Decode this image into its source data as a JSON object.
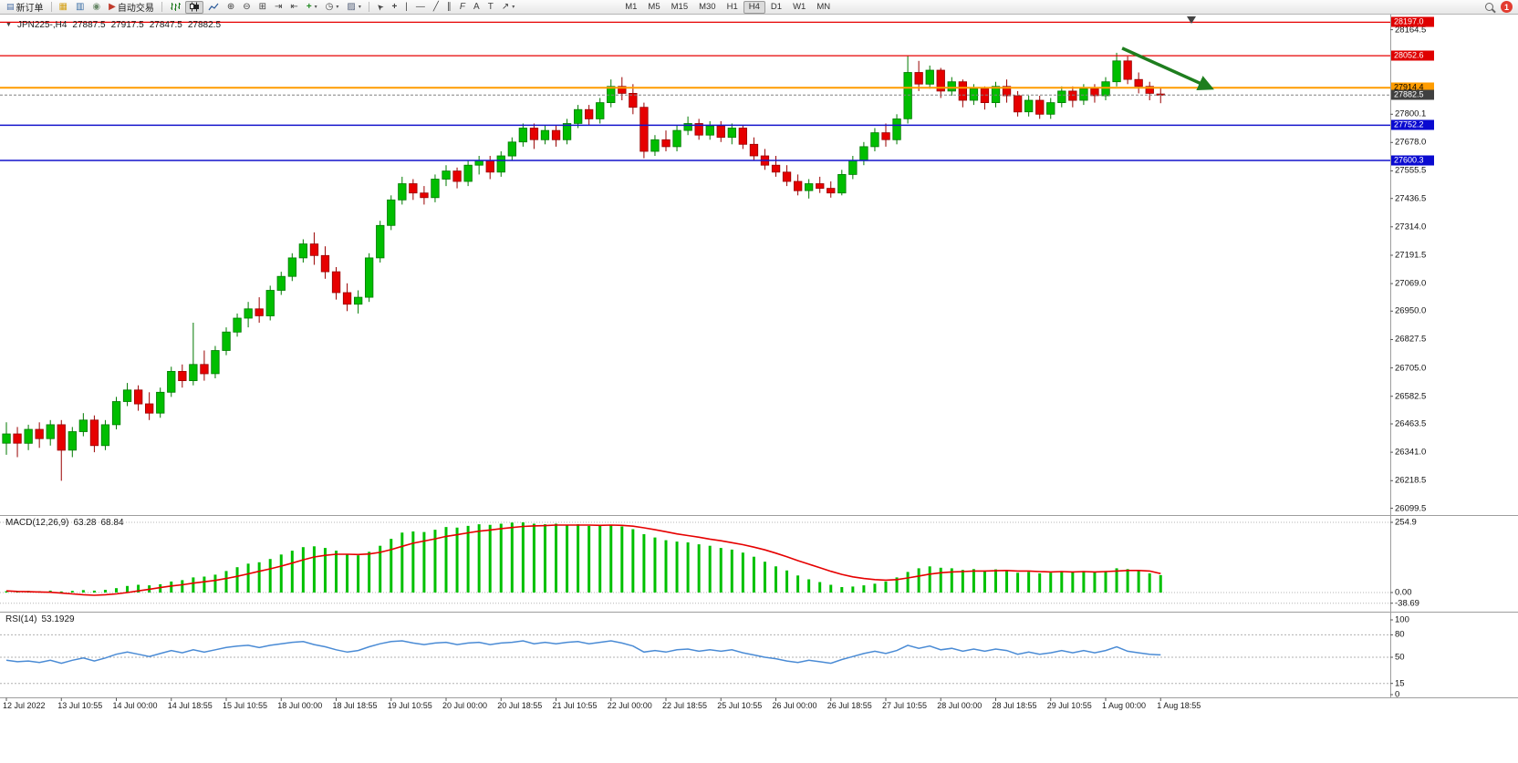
{
  "toolbar": {
    "new_order": "新订单",
    "auto_trading": "自动交易",
    "timeframes": [
      "M1",
      "M5",
      "M15",
      "M30",
      "H1",
      "H4",
      "D1",
      "W1",
      "MN"
    ],
    "active_timeframe": "H4",
    "notification_count": "1"
  },
  "chart_header": {
    "symbol": "JPN225-,H4",
    "open": "27887.5",
    "high": "27917.5",
    "low": "27847.5",
    "close": "27882.5"
  },
  "indicators": {
    "macd": {
      "label": "MACD(12,26,9)",
      "value_macd": "63.28",
      "value_signal": "68.84"
    },
    "rsi": {
      "label": "RSI(14)",
      "value": "53.1929"
    }
  },
  "price_axis": {
    "ticks": [
      "28164.5",
      "27800.1",
      "27678.0",
      "27555.5",
      "27436.5",
      "27314.0",
      "27191.5",
      "27069.0",
      "26950.0",
      "26827.5",
      "26705.0",
      "26582.5",
      "26463.5",
      "26341.0",
      "26218.5",
      "26099.5"
    ],
    "badges": [
      {
        "text": "28197.0",
        "price": 28197.0,
        "bg": "#DF0000",
        "fg": "#FFFFFF"
      },
      {
        "text": "28052.6",
        "price": 28052.6,
        "bg": "#DF0000",
        "fg": "#FFFFFF"
      },
      {
        "text": "27914.4",
        "price": 27914.4,
        "bg": "#FF9C00",
        "fg": "#000000"
      },
      {
        "text": "27882.5",
        "price": 27882.5,
        "bg": "#404040",
        "fg": "#FFFFFF"
      },
      {
        "text": "27752.2",
        "price": 27752.2,
        "bg": "#0A0AD0",
        "fg": "#FFFFFF"
      },
      {
        "text": "27600.3",
        "price": 27600.3,
        "bg": "#0A0AD0",
        "fg": "#FFFFFF"
      }
    ]
  },
  "macd_axis": [
    {
      "t": "254.9",
      "v": 254.9
    },
    {
      "t": "0.00",
      "v": 0
    },
    {
      "t": "-38.69",
      "v": -38.69
    }
  ],
  "rsi_axis": [
    {
      "t": "100",
      "v": 100
    },
    {
      "t": "80",
      "v": 80
    },
    {
      "t": "50",
      "v": 50
    },
    {
      "t": "15",
      "v": 15
    },
    {
      "t": "0",
      "v": 0
    }
  ],
  "colors": {
    "candle_up": "#00BE00",
    "candle_up_border": "#007A00",
    "candle_down": "#E60000",
    "candle_down_border": "#990000",
    "macd_histogram": "#00C000",
    "macd_signal": "#E60000",
    "rsi_line": "#4A8BD5",
    "hline_red": "#E60000",
    "hline_orange": "#FF9C00",
    "hline_blue": "#1414CC",
    "arrow_green": "#1E7E1E"
  },
  "chart_data": [
    {
      "type": "candlestick",
      "symbol": "JPN225-",
      "timeframe": "H4",
      "current_bar": {
        "open": 27887.5,
        "high": 27917.5,
        "low": 27847.5,
        "close": 27882.5
      },
      "ylim": [
        26070,
        28230
      ],
      "label_step": 5,
      "x_labels": [
        "12 Jul 2022",
        "13 Jul 10:55",
        "14 Jul 00:00",
        "14 Jul 18:55",
        "15 Jul 10:55",
        "18 Jul 00:00",
        "18 Jul 18:55",
        "19 Jul 10:55",
        "20 Jul 00:00",
        "20 Jul 18:55",
        "21 Jul 10:55",
        "22 Jul 00:00",
        "22 Jul 18:55",
        "25 Jul 10:55",
        "26 Jul 00:00",
        "26 Jul 18:55",
        "27 Jul 10:55",
        "28 Jul 00:00",
        "28 Jul 18:55",
        "29 Jul 10:55",
        "1 Aug 00:00",
        "1 Aug 18:55"
      ],
      "hlines": [
        {
          "price": 28197.0,
          "color": "#E60000",
          "width": 1.2
        },
        {
          "price": 28052.6,
          "color": "#E60000",
          "width": 1.2
        },
        {
          "price": 27914.4,
          "color": "#FF9C00",
          "width": 2
        },
        {
          "price": 27882.5,
          "color": "#808080",
          "width": 1,
          "dash": "3,2"
        },
        {
          "price": 27752.2,
          "color": "#1414CC",
          "width": 1.5
        },
        {
          "price": 27600.3,
          "color": "#1414CC",
          "width": 1.5
        }
      ],
      "arrow": {
        "from_index": 101.5,
        "from_price": 28085,
        "to_index": 109.6,
        "to_price": 27912,
        "color": "#1E7E1E"
      },
      "shift_marker_index": 107.8,
      "ohlc": [
        [
          26380,
          26470,
          26330,
          26420
        ],
        [
          26420,
          26450,
          26320,
          26380
        ],
        [
          26380,
          26460,
          26350,
          26440
        ],
        [
          26440,
          26470,
          26360,
          26400
        ],
        [
          26400,
          26480,
          26370,
          26460
        ],
        [
          26460,
          26480,
          26218,
          26350
        ],
        [
          26350,
          26450,
          26320,
          26430
        ],
        [
          26430,
          26510,
          26410,
          26480
        ],
        [
          26480,
          26500,
          26341,
          26370
        ],
        [
          26370,
          26480,
          26350,
          26460
        ],
        [
          26460,
          26580,
          26440,
          26560
        ],
        [
          26560,
          26640,
          26540,
          26610
        ],
        [
          26610,
          26630,
          26520,
          26550
        ],
        [
          26550,
          26600,
          26480,
          26510
        ],
        [
          26510,
          26620,
          26490,
          26600
        ],
        [
          26600,
          26710,
          26580,
          26690
        ],
        [
          26690,
          26720,
          26620,
          26650
        ],
        [
          26650,
          26900,
          26630,
          26720
        ],
        [
          26720,
          26780,
          26650,
          26680
        ],
        [
          26680,
          26800,
          26660,
          26780
        ],
        [
          26780,
          26880,
          26760,
          26860
        ],
        [
          26860,
          26940,
          26840,
          26920
        ],
        [
          26920,
          26990,
          26880,
          26960
        ],
        [
          26960,
          27010,
          26900,
          26930
        ],
        [
          26930,
          27060,
          26910,
          27040
        ],
        [
          27040,
          27120,
          27020,
          27100
        ],
        [
          27100,
          27200,
          27080,
          27180
        ],
        [
          27180,
          27260,
          27160,
          27240
        ],
        [
          27240,
          27290,
          27150,
          27190
        ],
        [
          27190,
          27230,
          27090,
          27120
        ],
        [
          27120,
          27140,
          27000,
          27030
        ],
        [
          27030,
          27070,
          26950,
          26980
        ],
        [
          26980,
          27040,
          26940,
          27010
        ],
        [
          27010,
          27200,
          26990,
          27180
        ],
        [
          27180,
          27340,
          27160,
          27320
        ],
        [
          27320,
          27450,
          27300,
          27430
        ],
        [
          27430,
          27530,
          27410,
          27500
        ],
        [
          27500,
          27520,
          27430,
          27460
        ],
        [
          27460,
          27490,
          27410,
          27440
        ],
        [
          27440,
          27540,
          27420,
          27520
        ],
        [
          27520,
          27580,
          27490,
          27555
        ],
        [
          27555,
          27570,
          27480,
          27510
        ],
        [
          27510,
          27600,
          27490,
          27580
        ],
        [
          27580,
          27620,
          27540,
          27600
        ],
        [
          27600,
          27620,
          27520,
          27550
        ],
        [
          27550,
          27640,
          27530,
          27620
        ],
        [
          27620,
          27700,
          27600,
          27680
        ],
        [
          27680,
          27760,
          27660,
          27740
        ],
        [
          27740,
          27760,
          27650,
          27690
        ],
        [
          27690,
          27750,
          27670,
          27730
        ],
        [
          27730,
          27750,
          27660,
          27690
        ],
        [
          27690,
          27780,
          27670,
          27760
        ],
        [
          27760,
          27840,
          27740,
          27820
        ],
        [
          27820,
          27840,
          27750,
          27780
        ],
        [
          27780,
          27870,
          27760,
          27850
        ],
        [
          27850,
          27950,
          27830,
          27920
        ],
        [
          27920,
          27960,
          27860,
          27890
        ],
        [
          27890,
          27930,
          27800,
          27830
        ],
        [
          27830,
          27850,
          27610,
          27640
        ],
        [
          27640,
          27710,
          27620,
          27690
        ],
        [
          27690,
          27730,
          27640,
          27660
        ],
        [
          27660,
          27750,
          27640,
          27730
        ],
        [
          27730,
          27790,
          27710,
          27760
        ],
        [
          27760,
          27780,
          27690,
          27710
        ],
        [
          27710,
          27770,
          27690,
          27750
        ],
        [
          27750,
          27770,
          27680,
          27700
        ],
        [
          27700,
          27760,
          27670,
          27740
        ],
        [
          27740,
          27750,
          27650,
          27670
        ],
        [
          27670,
          27700,
          27600,
          27620
        ],
        [
          27620,
          27650,
          27560,
          27580
        ],
        [
          27580,
          27620,
          27530,
          27550
        ],
        [
          27550,
          27580,
          27490,
          27510
        ],
        [
          27510,
          27540,
          27450,
          27470
        ],
        [
          27470,
          27520,
          27436,
          27500
        ],
        [
          27500,
          27530,
          27460,
          27480
        ],
        [
          27480,
          27510,
          27440,
          27460
        ],
        [
          27460,
          27560,
          27450,
          27540
        ],
        [
          27540,
          27620,
          27520,
          27600
        ],
        [
          27600,
          27680,
          27580,
          27660
        ],
        [
          27660,
          27740,
          27640,
          27720
        ],
        [
          27720,
          27760,
          27660,
          27690
        ],
        [
          27690,
          27800,
          27670,
          27780
        ],
        [
          27780,
          28052,
          27760,
          27980
        ],
        [
          27980,
          28030,
          27900,
          27930
        ],
        [
          27930,
          28010,
          27910,
          27990
        ],
        [
          27990,
          28000,
          27870,
          27900
        ],
        [
          27900,
          27960,
          27880,
          27940
        ],
        [
          27940,
          27950,
          27830,
          27860
        ],
        [
          27860,
          27930,
          27840,
          27910
        ],
        [
          27910,
          27920,
          27820,
          27850
        ],
        [
          27850,
          27940,
          27830,
          27920
        ],
        [
          27920,
          27950,
          27850,
          27880
        ],
        [
          27880,
          27900,
          27790,
          27810
        ],
        [
          27810,
          27880,
          27790,
          27860
        ],
        [
          27860,
          27880,
          27780,
          27800
        ],
        [
          27800,
          27870,
          27780,
          27850
        ],
        [
          27850,
          27920,
          27830,
          27900
        ],
        [
          27900,
          27920,
          27830,
          27860
        ],
        [
          27860,
          27930,
          27840,
          27910
        ],
        [
          27910,
          27930,
          27850,
          27880
        ],
        [
          27880,
          27960,
          27860,
          27940
        ],
        [
          27940,
          28065,
          27920,
          28030
        ],
        [
          28030,
          28050,
          27930,
          27950
        ],
        [
          27950,
          27980,
          27890,
          27920
        ],
        [
          27920,
          27940,
          27860,
          27890
        ],
        [
          27887.5,
          27917.5,
          27847.5,
          27882.5
        ]
      ]
    },
    {
      "type": "bar",
      "name": "MACD",
      "params": "12,26,9",
      "current_macd": 63.28,
      "current_signal": 68.84,
      "levels": [
        254.9,
        0,
        -38.69
      ],
      "histogram": [
        5,
        4,
        6,
        5,
        7,
        4,
        6,
        9,
        7,
        10,
        16,
        24,
        28,
        26,
        30,
        40,
        45,
        55,
        58,
        65,
        78,
        92,
        105,
        110,
        122,
        138,
        152,
        165,
        168,
        162,
        152,
        140,
        135,
        148,
        170,
        195,
        218,
        222,
        220,
        228,
        238,
        236,
        242,
        248,
        246,
        250,
        254,
        254.9,
        250,
        248,
        250,
        246,
        248,
        242,
        244,
        246,
        240,
        230,
        212,
        200,
        190,
        185,
        182,
        175,
        170,
        162,
        156,
        145,
        130,
        112,
        95,
        80,
        62,
        48,
        38,
        28,
        20,
        22,
        26,
        32,
        40,
        55,
        75,
        88,
        95,
        90,
        88,
        82,
        85,
        80,
        84,
        80,
        72,
        75,
        70,
        72,
        78,
        74,
        78,
        74,
        78,
        88,
        85,
        78,
        70,
        63.28
      ],
      "signal": [
        6,
        4,
        3,
        2,
        1,
        -2,
        -5,
        -8,
        -10,
        -8,
        -5,
        0,
        6,
        12,
        18,
        24,
        28,
        34,
        39,
        44,
        51,
        59,
        68,
        77,
        86,
        96,
        107,
        119,
        129,
        135,
        139,
        139,
        138,
        140,
        146,
        156,
        168,
        179,
        187,
        195,
        204,
        210,
        217,
        223,
        227,
        232,
        236,
        240,
        242,
        243,
        245,
        245,
        245,
        245,
        244,
        245,
        244,
        241,
        235,
        228,
        221,
        213,
        207,
        201,
        194,
        188,
        181,
        174,
        165,
        155,
        143,
        130,
        116,
        103,
        90,
        77,
        66,
        57,
        51,
        47,
        45,
        47,
        53,
        60,
        67,
        72,
        75,
        76,
        78,
        78,
        79,
        80,
        78,
        78,
        76,
        75,
        76,
        75,
        76,
        75,
        76,
        78,
        80,
        80,
        78,
        68.84
      ]
    },
    {
      "type": "line",
      "name": "RSI",
      "params": "14",
      "current": 53.1929,
      "range": [
        0,
        100
      ],
      "levels": [
        80,
        50,
        15
      ],
      "values": [
        46,
        44,
        45,
        43,
        46,
        42,
        46,
        49,
        45,
        49,
        54,
        57,
        54,
        51,
        55,
        59,
        56,
        60,
        57,
        60,
        63,
        65,
        66,
        63,
        66,
        68,
        70,
        71,
        67,
        64,
        60,
        57,
        59,
        64,
        68,
        71,
        72,
        69,
        67,
        69,
        70,
        67,
        69,
        70,
        67,
        69,
        70,
        72,
        68,
        70,
        68,
        70,
        71,
        68,
        70,
        72,
        69,
        65,
        57,
        59,
        57,
        60,
        61,
        58,
        60,
        58,
        60,
        56,
        53,
        50,
        48,
        45,
        43,
        46,
        44,
        42,
        47,
        51,
        55,
        58,
        55,
        59,
        66,
        62,
        65,
        60,
        62,
        58,
        61,
        58,
        61,
        59,
        54,
        57,
        54,
        56,
        59,
        56,
        59,
        56,
        59,
        64,
        58,
        56,
        54,
        53.19
      ]
    }
  ]
}
